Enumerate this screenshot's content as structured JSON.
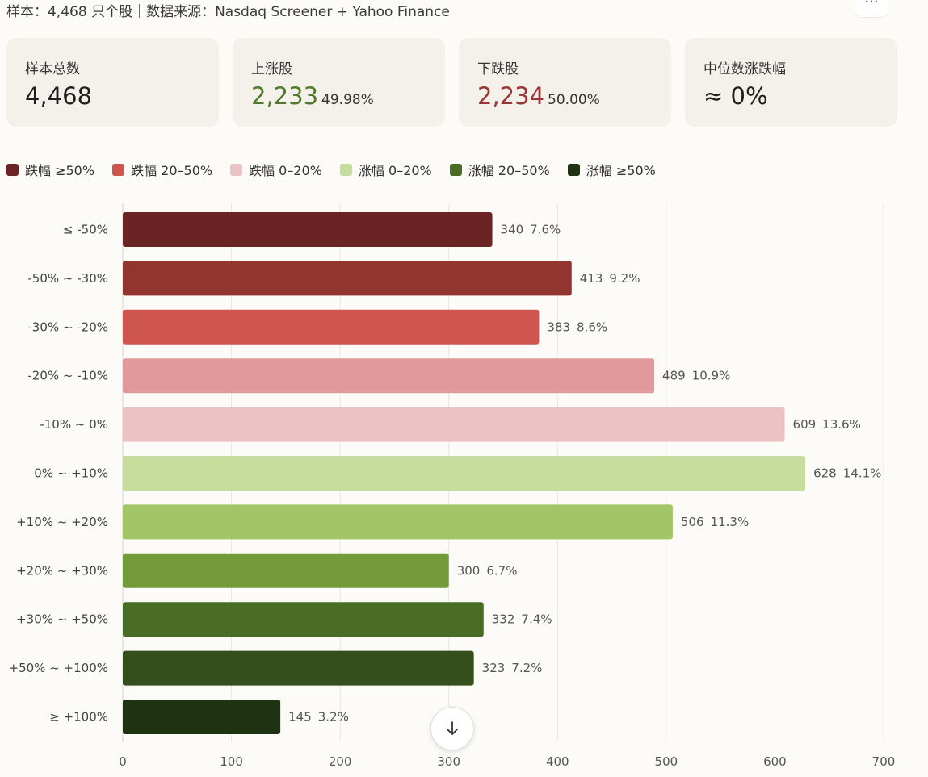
{
  "header": {
    "subtitle": "样本：4,468 只个股｜数据来源：Nasdaq Screener + Yahoo Finance",
    "more_label": "···"
  },
  "cards": [
    {
      "label": "样本总数",
      "value": "4,468",
      "pct": ""
    },
    {
      "label": "上涨股",
      "value": "2,233",
      "pct": "49.98%"
    },
    {
      "label": "下跌股",
      "value": "2,234",
      "pct": "50.00%"
    },
    {
      "label": "中位数涨跌幅",
      "value": "≈ 0%",
      "pct": ""
    }
  ],
  "colors": {
    "up_text": "#4f7a2a",
    "down_text": "#9b3432"
  },
  "legend": [
    {
      "label": "跌幅 ≥50%",
      "color": "#6b2424"
    },
    {
      "label": "跌幅 20–50%",
      "color": "#cf554f"
    },
    {
      "label": "跌幅 0–20%",
      "color": "#ebc3c4"
    },
    {
      "label": "涨幅 0–20%",
      "color": "#c7dd9e"
    },
    {
      "label": "涨幅 20–50%",
      "color": "#4a6d25"
    },
    {
      "label": "涨幅 ≥50%",
      "color": "#1f3312"
    }
  ],
  "chart_data": {
    "type": "bar",
    "orientation": "horizontal",
    "categories": [
      "≤ -50%",
      "-50% ~ -30%",
      "-30% ~ -20%",
      "-20% ~ -10%",
      "-10% ~ 0%",
      "0% ~ +10%",
      "+10% ~ +20%",
      "+20% ~ +30%",
      "+30% ~ +50%",
      "+50% ~ +100%",
      "≥ +100%"
    ],
    "values": [
      340,
      413,
      383,
      489,
      609,
      628,
      506,
      300,
      332,
      323,
      145
    ],
    "percent_labels": [
      "7.6%",
      "9.2%",
      "8.6%",
      "10.9%",
      "13.6%",
      "14.1%",
      "11.3%",
      "6.7%",
      "7.4%",
      "7.2%",
      "3.2%"
    ],
    "bar_colors": [
      "#6b2424",
      "#923530",
      "#cf554f",
      "#e09a9b",
      "#ebc3c4",
      "#c7dd9e",
      "#a2c566",
      "#739b39",
      "#4a6d25",
      "#344f1c",
      "#1f3312"
    ],
    "xlim": [
      0,
      700
    ],
    "xticks": [
      0,
      100,
      200,
      300,
      400,
      500,
      600,
      700
    ],
    "grid": true
  }
}
